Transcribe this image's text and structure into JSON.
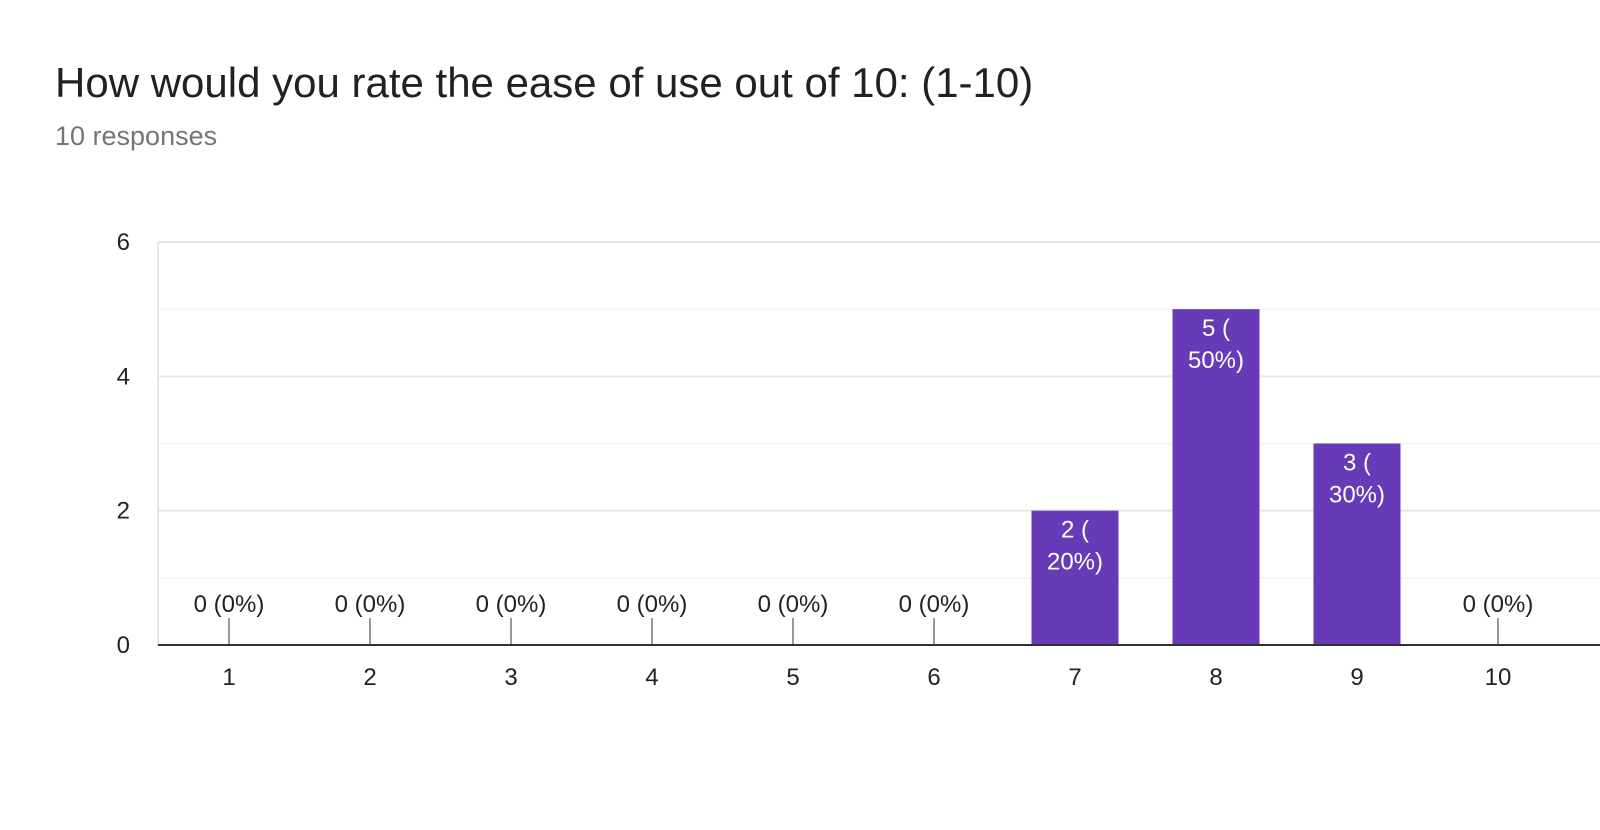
{
  "header": {
    "title": "How would you rate the ease of use out of 10: (1-10)",
    "subtitle": "10 responses"
  },
  "chart_data": {
    "type": "bar",
    "categories": [
      "1",
      "2",
      "3",
      "4",
      "5",
      "6",
      "7",
      "8",
      "9",
      "10"
    ],
    "values": [
      0,
      0,
      0,
      0,
      0,
      0,
      2,
      5,
      3,
      0
    ],
    "data_labels": [
      "0 (0%)",
      "0 (0%)",
      "0 (0%)",
      "0 (0%)",
      "0 (0%)",
      "0 (0%)",
      "2 (\n20%)",
      "5 (\n50%)",
      "3 (\n30%)",
      "0 (0%)"
    ],
    "title": "How would you rate the ease of use out of 10: (1-10)",
    "subtitle": "10 responses",
    "xlabel": "",
    "ylabel": "",
    "ylim": [
      0,
      6
    ],
    "yticks": [
      0,
      2,
      4,
      6
    ],
    "grid": true,
    "legend": "none",
    "bar_color": "#673ab7"
  }
}
